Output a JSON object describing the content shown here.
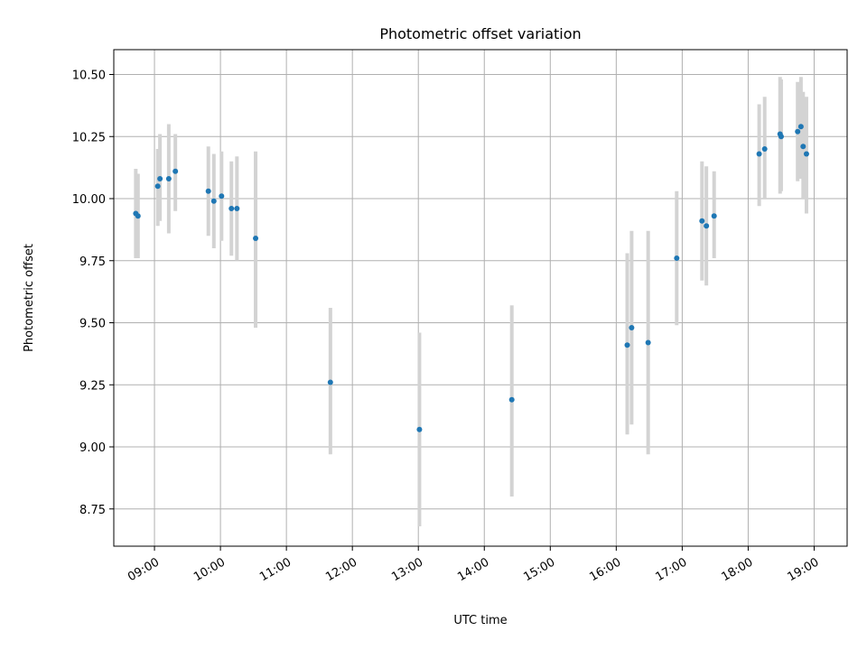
{
  "chart_data": {
    "type": "scatter",
    "title": "Photometric offset variation",
    "xlabel": "UTC time",
    "ylabel": "Photometric offset",
    "x_ticks": [
      "09:00",
      "10:00",
      "11:00",
      "12:00",
      "13:00",
      "14:00",
      "15:00",
      "16:00",
      "17:00",
      "18:00",
      "19:00"
    ],
    "y_ticks": [
      "8.75",
      "9.00",
      "9.25",
      "9.50",
      "9.75",
      "10.00",
      "10.25",
      "10.50"
    ],
    "xlim": [
      "08:23",
      "19:30"
    ],
    "ylim": [
      8.6,
      10.6
    ],
    "grid": true,
    "colors": {
      "points": "#1f77b4",
      "error_bars": "#d3d3d3",
      "grid": "#b0b0b0"
    },
    "series": [
      {
        "points": [
          {
            "x": "08:43",
            "y": 9.94,
            "ylow": 9.76,
            "yhigh": 10.12
          },
          {
            "x": "08:45",
            "y": 9.93,
            "ylow": 9.76,
            "yhigh": 10.1
          },
          {
            "x": "09:03",
            "y": 10.05,
            "ylow": 9.89,
            "yhigh": 10.2
          },
          {
            "x": "09:05",
            "y": 10.08,
            "ylow": 9.91,
            "yhigh": 10.26
          },
          {
            "x": "09:13",
            "y": 10.08,
            "ylow": 9.86,
            "yhigh": 10.3
          },
          {
            "x": "09:19",
            "y": 10.11,
            "ylow": 9.95,
            "yhigh": 10.26
          },
          {
            "x": "09:49",
            "y": 10.03,
            "ylow": 9.85,
            "yhigh": 10.21
          },
          {
            "x": "09:54",
            "y": 9.99,
            "ylow": 9.8,
            "yhigh": 10.18
          },
          {
            "x": "10:01",
            "y": 10.01,
            "ylow": 9.83,
            "yhigh": 10.19
          },
          {
            "x": "10:10",
            "y": 9.96,
            "ylow": 9.77,
            "yhigh": 10.15
          },
          {
            "x": "10:15",
            "y": 9.96,
            "ylow": 9.75,
            "yhigh": 10.17
          },
          {
            "x": "10:32",
            "y": 9.84,
            "ylow": 9.48,
            "yhigh": 10.19
          },
          {
            "x": "11:40",
            "y": 9.26,
            "ylow": 8.97,
            "yhigh": 9.56
          },
          {
            "x": "13:01",
            "y": 9.07,
            "ylow": 8.68,
            "yhigh": 9.46
          },
          {
            "x": "14:25",
            "y": 9.19,
            "ylow": 8.8,
            "yhigh": 9.57
          },
          {
            "x": "16:10",
            "y": 9.41,
            "ylow": 9.05,
            "yhigh": 9.78
          },
          {
            "x": "16:14",
            "y": 9.48,
            "ylow": 9.09,
            "yhigh": 9.87
          },
          {
            "x": "16:29",
            "y": 9.42,
            "ylow": 8.97,
            "yhigh": 9.87
          },
          {
            "x": "16:55",
            "y": 9.76,
            "ylow": 9.49,
            "yhigh": 10.03
          },
          {
            "x": "17:18",
            "y": 9.91,
            "ylow": 9.67,
            "yhigh": 10.15
          },
          {
            "x": "17:22",
            "y": 9.89,
            "ylow": 9.65,
            "yhigh": 10.13
          },
          {
            "x": "17:29",
            "y": 9.93,
            "ylow": 9.76,
            "yhigh": 10.11
          },
          {
            "x": "18:10",
            "y": 10.18,
            "ylow": 9.97,
            "yhigh": 10.38
          },
          {
            "x": "18:15",
            "y": 10.2,
            "ylow": 10.0,
            "yhigh": 10.41
          },
          {
            "x": "18:29",
            "y": 10.26,
            "ylow": 10.02,
            "yhigh": 10.49
          },
          {
            "x": "18:30",
            "y": 10.25,
            "ylow": 10.03,
            "yhigh": 10.48
          },
          {
            "x": "18:45",
            "y": 10.27,
            "ylow": 10.07,
            "yhigh": 10.47
          },
          {
            "x": "18:48",
            "y": 10.29,
            "ylow": 10.08,
            "yhigh": 10.49
          },
          {
            "x": "18:50",
            "y": 10.21,
            "ylow": 10.0,
            "yhigh": 10.43
          },
          {
            "x": "18:53",
            "y": 10.18,
            "ylow": 9.94,
            "yhigh": 10.41
          }
        ]
      }
    ]
  }
}
